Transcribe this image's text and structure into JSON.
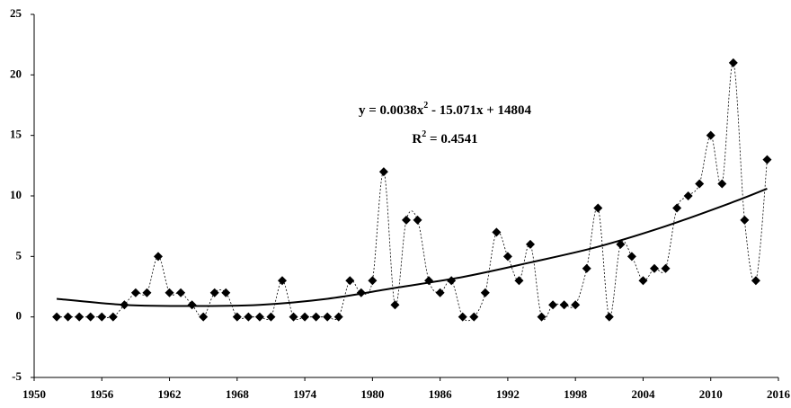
{
  "chart_data": {
    "type": "scatter",
    "x": [
      1952,
      1953,
      1954,
      1955,
      1956,
      1957,
      1958,
      1959,
      1960,
      1961,
      1962,
      1963,
      1964,
      1965,
      1966,
      1967,
      1968,
      1969,
      1970,
      1971,
      1972,
      1973,
      1974,
      1975,
      1976,
      1977,
      1978,
      1979,
      1980,
      1981,
      1982,
      1983,
      1984,
      1985,
      1986,
      1987,
      1988,
      1989,
      1990,
      1991,
      1992,
      1993,
      1994,
      1995,
      1996,
      1997,
      1998,
      1999,
      2000,
      2001,
      2002,
      2003,
      2004,
      2005,
      2006,
      2007,
      2008,
      2009,
      2010,
      2011,
      2012,
      2013,
      2014,
      2015
    ],
    "series": [
      {
        "color": "#000000",
        "values": [
          0,
          0,
          0,
          0,
          0,
          0,
          1,
          2,
          2,
          5,
          2,
          2,
          1,
          0,
          2,
          2,
          0,
          0,
          0,
          0,
          3,
          0,
          0,
          0,
          0,
          0,
          3,
          2,
          3,
          12,
          1,
          8,
          8,
          3,
          2,
          3,
          0,
          0,
          2,
          7,
          5,
          3,
          6,
          0,
          1,
          1,
          1,
          4,
          9,
          0,
          6,
          5,
          3,
          4,
          4,
          9,
          10,
          11,
          15,
          11,
          21,
          8,
          3,
          13
        ]
      }
    ],
    "trendline": {
      "color": "#000000",
      "x": [
        1952,
        1958,
        1964,
        1970,
        1976,
        1982,
        1988,
        1994,
        2000,
        2006,
        2012,
        2015
      ],
      "values": [
        1.5,
        1.0,
        0.9,
        1.0,
        1.5,
        2.4,
        3.3,
        4.5,
        5.8,
        7.5,
        9.5,
        10.6
      ]
    },
    "annotation": {
      "equation": [
        "y = 0.0038x",
        "2",
        " - 15.071x + 14804"
      ],
      "r_squared": [
        "R",
        "2",
        " = 0.4541"
      ]
    },
    "xlim": [
      1950,
      2016
    ],
    "xticks": [
      1950,
      1956,
      1962,
      1968,
      1974,
      1980,
      1986,
      1992,
      1998,
      2004,
      2010,
      2016
    ],
    "ylim": [
      -5,
      25
    ],
    "yticks": [
      -5,
      0,
      5,
      10,
      15,
      20,
      25
    ],
    "grid": false
  }
}
